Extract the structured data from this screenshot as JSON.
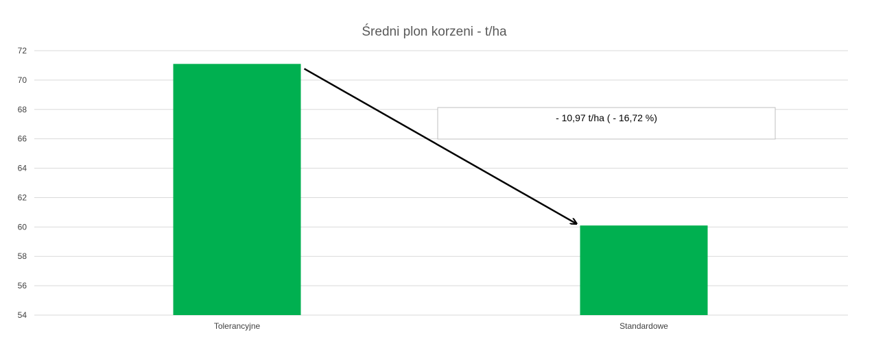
{
  "chart_data": {
    "type": "bar",
    "title": "Średni plon korzeni - t/ha",
    "xlabel": "",
    "ylabel": "",
    "categories": [
      "Tolerancyjne",
      "Standardowe"
    ],
    "values": [
      71.1,
      60.1
    ],
    "ylim": [
      54,
      72
    ],
    "yticks": [
      54,
      56,
      58,
      60,
      62,
      64,
      66,
      68,
      70,
      72
    ],
    "grid": true,
    "legend": "none",
    "bar_color": "#00b050",
    "annotation": {
      "text": "- 10,97 t/ha ( - 16,72 %)",
      "arrow": "from Tolerancyjne bar top to Standardowe bar top"
    }
  }
}
